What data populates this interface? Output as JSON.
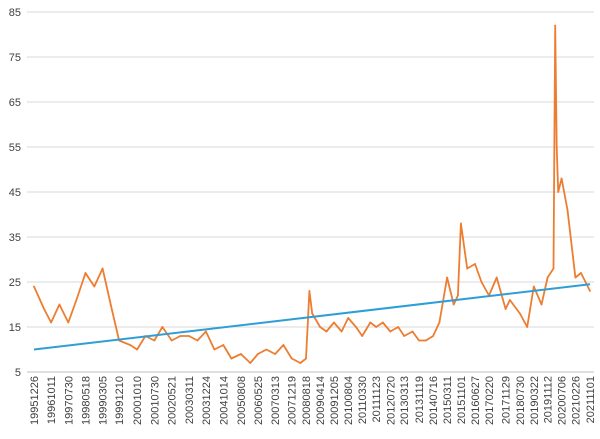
{
  "chart_data": {
    "type": "line",
    "title": "",
    "xlabel": "",
    "ylabel": "",
    "ylim": [
      5,
      85
    ],
    "yticks": [
      5,
      15,
      25,
      35,
      45,
      55,
      65,
      75,
      85
    ],
    "grid": "horizontal",
    "legend": "none",
    "x_tick_labels": [
      "19951226",
      "19961011",
      "19970730",
      "19980518",
      "19990305",
      "19991210",
      "20001010",
      "20010730",
      "20020521",
      "20030311",
      "20031224",
      "20041014",
      "20050808",
      "20060525",
      "20070313",
      "20071219",
      "20080818",
      "20090414",
      "20091205",
      "20100804",
      "20110330",
      "20111123",
      "20120720",
      "20130313",
      "20131119",
      "20140716",
      "20150311",
      "20151101",
      "20160627",
      "20170220",
      "20171129",
      "20180730",
      "20190322",
      "20191112",
      "20200706",
      "20210226",
      "20211101"
    ],
    "series": [
      {
        "color": "#ED7D31",
        "x": [
          "19951226",
          "19960615",
          "19961011",
          "19970301",
          "19970730",
          "19971215",
          "19980518",
          "19981015",
          "19990305",
          "19990720",
          "19991210",
          "20000615",
          "20001010",
          "20010301",
          "20010730",
          "20011215",
          "20020521",
          "20021015",
          "20030311",
          "20030801",
          "20031224",
          "20040515",
          "20041014",
          "20050301",
          "20050808",
          "20060115",
          "20060525",
          "20061015",
          "20070313",
          "20070801",
          "20071219",
          "20080515",
          "20080818",
          "20081015",
          "20081201",
          "20090414",
          "20090801",
          "20091205",
          "20100415",
          "20100804",
          "20101215",
          "20110330",
          "20110815",
          "20111123",
          "20120315",
          "20120720",
          "20121201",
          "20130313",
          "20130801",
          "20131119",
          "20140315",
          "20140716",
          "20141101",
          "20150311",
          "20150701",
          "20150910",
          "20151101",
          "20160215",
          "20160627",
          "20161015",
          "20170220",
          "20170701",
          "20171129",
          "20180210",
          "20180730",
          "20181201",
          "20190322",
          "20190801",
          "20191112",
          "20200220",
          "20200320",
          "20200415",
          "20200510",
          "20200706",
          "20201015",
          "20210226",
          "20210601",
          "20211101"
        ],
        "values": [
          24,
          19,
          16,
          20,
          16,
          21,
          27,
          24,
          28,
          20,
          12,
          11,
          10,
          13,
          12,
          15,
          12,
          13,
          13,
          12,
          14,
          10,
          11,
          8,
          9,
          7,
          9,
          10,
          9,
          11,
          8,
          7,
          8,
          23,
          18,
          15,
          14,
          16,
          14,
          17,
          15,
          13,
          16,
          15,
          16,
          14,
          15,
          13,
          14,
          12,
          12,
          13,
          16,
          26,
          20,
          22,
          38,
          28,
          29,
          25,
          22,
          26,
          19,
          21,
          18,
          15,
          24,
          20,
          26,
          28,
          82,
          55,
          45,
          48,
          41,
          26,
          27,
          23
        ]
      },
      {
        "color": "#2E9FD6",
        "x": [
          "19951226",
          "20211101"
        ],
        "values": [
          10,
          24.5
        ]
      }
    ]
  }
}
